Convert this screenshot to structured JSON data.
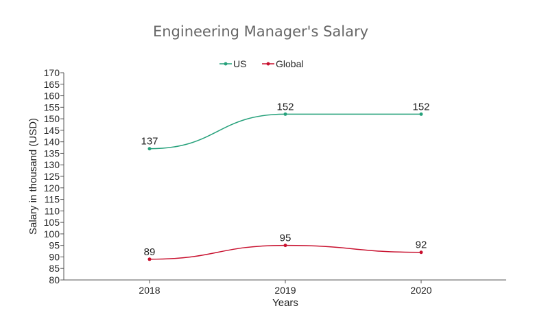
{
  "chart_data": {
    "type": "line",
    "title": "Engineering Manager's Salary",
    "xlabel": "Years",
    "ylabel": "Salary in thousand (USD)",
    "categories": [
      "2018",
      "2019",
      "2020"
    ],
    "ylim": [
      80,
      170
    ],
    "yticks": [
      80,
      85,
      90,
      95,
      100,
      105,
      110,
      115,
      120,
      125,
      130,
      135,
      140,
      145,
      150,
      155,
      160,
      165,
      170
    ],
    "grid": false,
    "legend_position": "top",
    "series": [
      {
        "name": "US",
        "values": [
          137,
          152,
          152
        ],
        "color": "#26a17b"
      },
      {
        "name": "Global",
        "values": [
          89,
          95,
          92
        ],
        "color": "#c8102e"
      }
    ]
  }
}
